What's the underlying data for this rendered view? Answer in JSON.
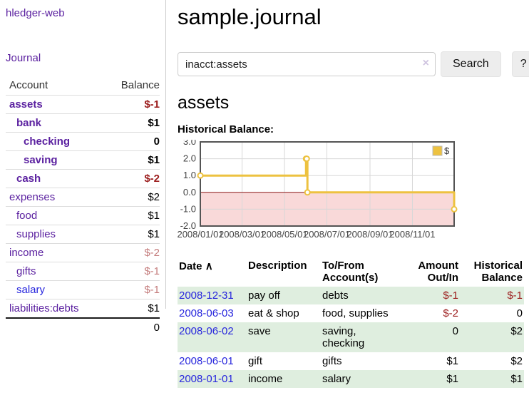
{
  "app": {
    "title": "hledger-web",
    "nav_journal": "Journal"
  },
  "sidebar": {
    "header": {
      "account": "Account",
      "balance": "Balance"
    },
    "accounts": [
      {
        "name": "assets",
        "balance": "$-1",
        "depth": 0,
        "bold": true,
        "balance_class": "bal-neg"
      },
      {
        "name": "bank",
        "balance": "$1",
        "depth": 1,
        "bold": true,
        "balance_class": ""
      },
      {
        "name": "checking",
        "balance": "0",
        "depth": 2,
        "bold": true,
        "balance_class": ""
      },
      {
        "name": "saving",
        "balance": "$1",
        "depth": 2,
        "bold": true,
        "balance_class": ""
      },
      {
        "name": "cash",
        "balance": "$-2",
        "depth": 1,
        "bold": true,
        "balance_class": "bal-neg"
      },
      {
        "name": "expenses",
        "balance": "$2",
        "depth": 0,
        "bold": false,
        "balance_class": ""
      },
      {
        "name": "food",
        "balance": "$1",
        "depth": 1,
        "bold": false,
        "balance_class": ""
      },
      {
        "name": "supplies",
        "balance": "$1",
        "depth": 1,
        "bold": false,
        "balance_class": ""
      },
      {
        "name": "income",
        "balance": "$-2",
        "depth": 0,
        "bold": false,
        "balance_class": "bal-neg-light"
      },
      {
        "name": "gifts",
        "balance": "$-1",
        "depth": 1,
        "bold": false,
        "balance_class": "bal-neg-light"
      },
      {
        "name": "salary",
        "balance": "$-1",
        "depth": 1,
        "bold": false,
        "balance_class": "bal-neg-light",
        "link_color": "blue"
      },
      {
        "name": "liabilities:debts",
        "balance": "$1",
        "depth": 0,
        "bold": false,
        "balance_class": ""
      }
    ],
    "total": "0"
  },
  "header": {
    "title": "sample.journal"
  },
  "search": {
    "query": "inacct:assets",
    "clear_label": "×",
    "button_label": "Search",
    "help_label": "?"
  },
  "account_page": {
    "heading": "assets",
    "chart_label": "Historical Balance:"
  },
  "chart_data": {
    "type": "line",
    "step": true,
    "title": "Historical Balance",
    "x": [
      "2008-01-01",
      "2008-06-01",
      "2008-06-02",
      "2008-06-03",
      "2008-12-31"
    ],
    "series": [
      {
        "name": "$",
        "color": "#edc240",
        "values": [
          1.0,
          2.0,
          2.0,
          0.0,
          -1.0
        ]
      }
    ],
    "xrange": [
      "2008-01-01",
      "2008-12-31"
    ],
    "ylim": [
      -2.0,
      3.0
    ],
    "yticks": [
      3.0,
      2.0,
      1.0,
      0.0,
      -1.0,
      -2.0
    ],
    "xtick_dates": [
      "2008-01-01",
      "2008-03-01",
      "2008-05-01",
      "2008-07-01",
      "2008-09-01",
      "2008-11-01"
    ],
    "xtick_labels": [
      "2008/01/01",
      "2008/03/01",
      "2008/05/01",
      "2008/07/01",
      "2008/09/01",
      "2008/11/01"
    ],
    "grid": true,
    "legend": {
      "label": "$",
      "position": "top-right"
    },
    "colors": {
      "negative_region": "#f9d9d9",
      "zero_line": "#8b1a1a",
      "border": "#545454",
      "gridline": "#d8d8d8",
      "tick_text": "#444444",
      "marker_fill": "#ffffff"
    }
  },
  "register": {
    "header": {
      "date": "Date",
      "sort_icon": "∧",
      "description": "Description",
      "tofrom": "To/From Account(s)",
      "amount": "Amount Out/In",
      "balance": "Historical Balance"
    },
    "rows": [
      {
        "date": "2008-12-31",
        "description": "pay off",
        "accounts": "debts",
        "amount": "$-1",
        "amount_neg": true,
        "balance": "$-1",
        "balance_neg": true
      },
      {
        "date": "2008-06-03",
        "description": "eat & shop",
        "accounts": "food, supplies",
        "amount": "$-2",
        "amount_neg": true,
        "balance": "0",
        "balance_neg": false
      },
      {
        "date": "2008-06-02",
        "description": "save",
        "accounts": "saving,\nchecking",
        "amount": "0",
        "amount_neg": false,
        "balance": "$2",
        "balance_neg": false
      },
      {
        "date": "2008-06-01",
        "description": "gift",
        "accounts": "gifts",
        "amount": "$1",
        "amount_neg": false,
        "balance": "$2",
        "balance_neg": false
      },
      {
        "date": "2008-01-01",
        "description": "income",
        "accounts": "salary",
        "amount": "$1",
        "amount_neg": false,
        "balance": "$1",
        "balance_neg": false
      }
    ]
  }
}
